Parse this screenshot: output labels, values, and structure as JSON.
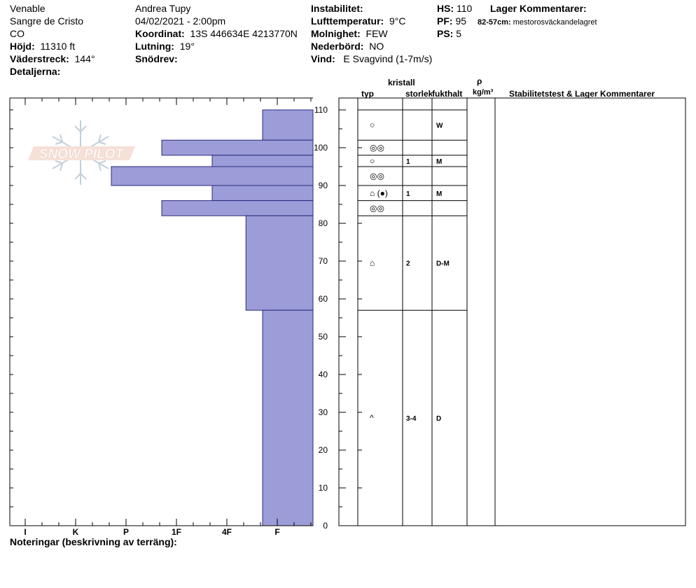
{
  "header": {
    "location": "Venable",
    "range": "Sangre de Cristo",
    "state": "CO",
    "elevation_label": "Höjd:",
    "elevation": "11310 ft",
    "aspect_label": "Väderstreck:",
    "aspect": "144°",
    "details_label": "Detaljerna:",
    "observer": "Andrea Tupy",
    "datetime": "04/02/2021 - 2:00pm",
    "coord_label": "Koordinat:",
    "coord": "13S 446634E 4213770N",
    "slope_label": "Lutning:",
    "slope": "19°",
    "drift_label": "Snödrev:",
    "instability_label": "Instabilitet:",
    "airtemp_label": "Lufttemperatur:",
    "airtemp": "9°C",
    "sky_label": "Molnighet:",
    "sky": "FEW",
    "precip_label": "Nederbörd:",
    "precip": "NO",
    "wind_label": "Vind:",
    "wind": "E Svagvind (1-7m/s)",
    "hs_label": "HS:",
    "hs": "110",
    "pf_label": "PF:",
    "pf": "95",
    "ps_label": "PS:",
    "ps": "5",
    "layer_comments_label": "Lager Kommentarer:",
    "layer_comment_range": "82-57cm:",
    "layer_comment_text": "mestorosväckandelagret"
  },
  "logo_text": "SNOW PILOT",
  "columns": {
    "crystal_label": "kristall",
    "type_label": "typ",
    "size_label": "storlek",
    "moisture_label": "fukthalt",
    "density_symbol": "ρ",
    "density_unit": "kg/m³",
    "stability_label": "Stabilitetstest & Lager Kommentarer"
  },
  "footer": {
    "notes_label": "Noteringar (beskrivning av terräng):"
  },
  "colors": {
    "bar_fill": "#9c9cd8",
    "bar_stroke": "#2a2a80"
  },
  "chart_data": {
    "type": "bar",
    "orientation": "horizontal",
    "ylabel": "",
    "ylim": [
      0,
      110
    ],
    "yticks": [
      0,
      10,
      20,
      30,
      40,
      50,
      60,
      70,
      80,
      90,
      100,
      110
    ],
    "hardness_categories": [
      "I",
      "K",
      "P",
      "1F",
      "4F",
      "F"
    ],
    "hardness_scale_note": "hand hardness; value = category index from right (F=1, 4F=2, 1F=3, P=4, K=5, I=6)",
    "layers": [
      {
        "top": 110,
        "bottom": 102,
        "hardness": "F",
        "hardness_value": 1.0
      },
      {
        "top": 102,
        "bottom": 98,
        "hardness": "1F",
        "hardness_value": 3.0
      },
      {
        "top": 98,
        "bottom": 95,
        "hardness": "4F",
        "hardness_value": 2.0
      },
      {
        "top": 95,
        "bottom": 90,
        "hardness": "P",
        "hardness_value": 4.0
      },
      {
        "top": 90,
        "bottom": 86,
        "hardness": "4F",
        "hardness_value": 2.0
      },
      {
        "top": 86,
        "bottom": 82,
        "hardness": "1F",
        "hardness_value": 3.0
      },
      {
        "top": 82,
        "bottom": 57,
        "hardness": "F+",
        "hardness_value": 1.33
      },
      {
        "top": 57,
        "bottom": 0,
        "hardness": "F",
        "hardness_value": 1.0
      }
    ],
    "grid_rows": [
      {
        "top": 110,
        "bottom": 102,
        "type": "○",
        "size": "",
        "moisture": "W"
      },
      {
        "top": 102,
        "bottom": 98,
        "type": "◎◎",
        "size": "",
        "moisture": ""
      },
      {
        "top": 98,
        "bottom": 95,
        "type": "○",
        "size": "1",
        "moisture": "M"
      },
      {
        "top": 95,
        "bottom": 90,
        "type": "◎◎",
        "size": "",
        "moisture": ""
      },
      {
        "top": 90,
        "bottom": 86,
        "type": "⌂ (●)",
        "size": "1",
        "moisture": "M"
      },
      {
        "top": 86,
        "bottom": 82,
        "type": "◎◎",
        "size": "",
        "moisture": ""
      },
      {
        "top": 82,
        "bottom": 57,
        "type": "⌂",
        "size": "2",
        "moisture": "D-M"
      },
      {
        "top": 57,
        "bottom": 0,
        "type": "^",
        "size": "3-4",
        "moisture": "D"
      }
    ]
  }
}
